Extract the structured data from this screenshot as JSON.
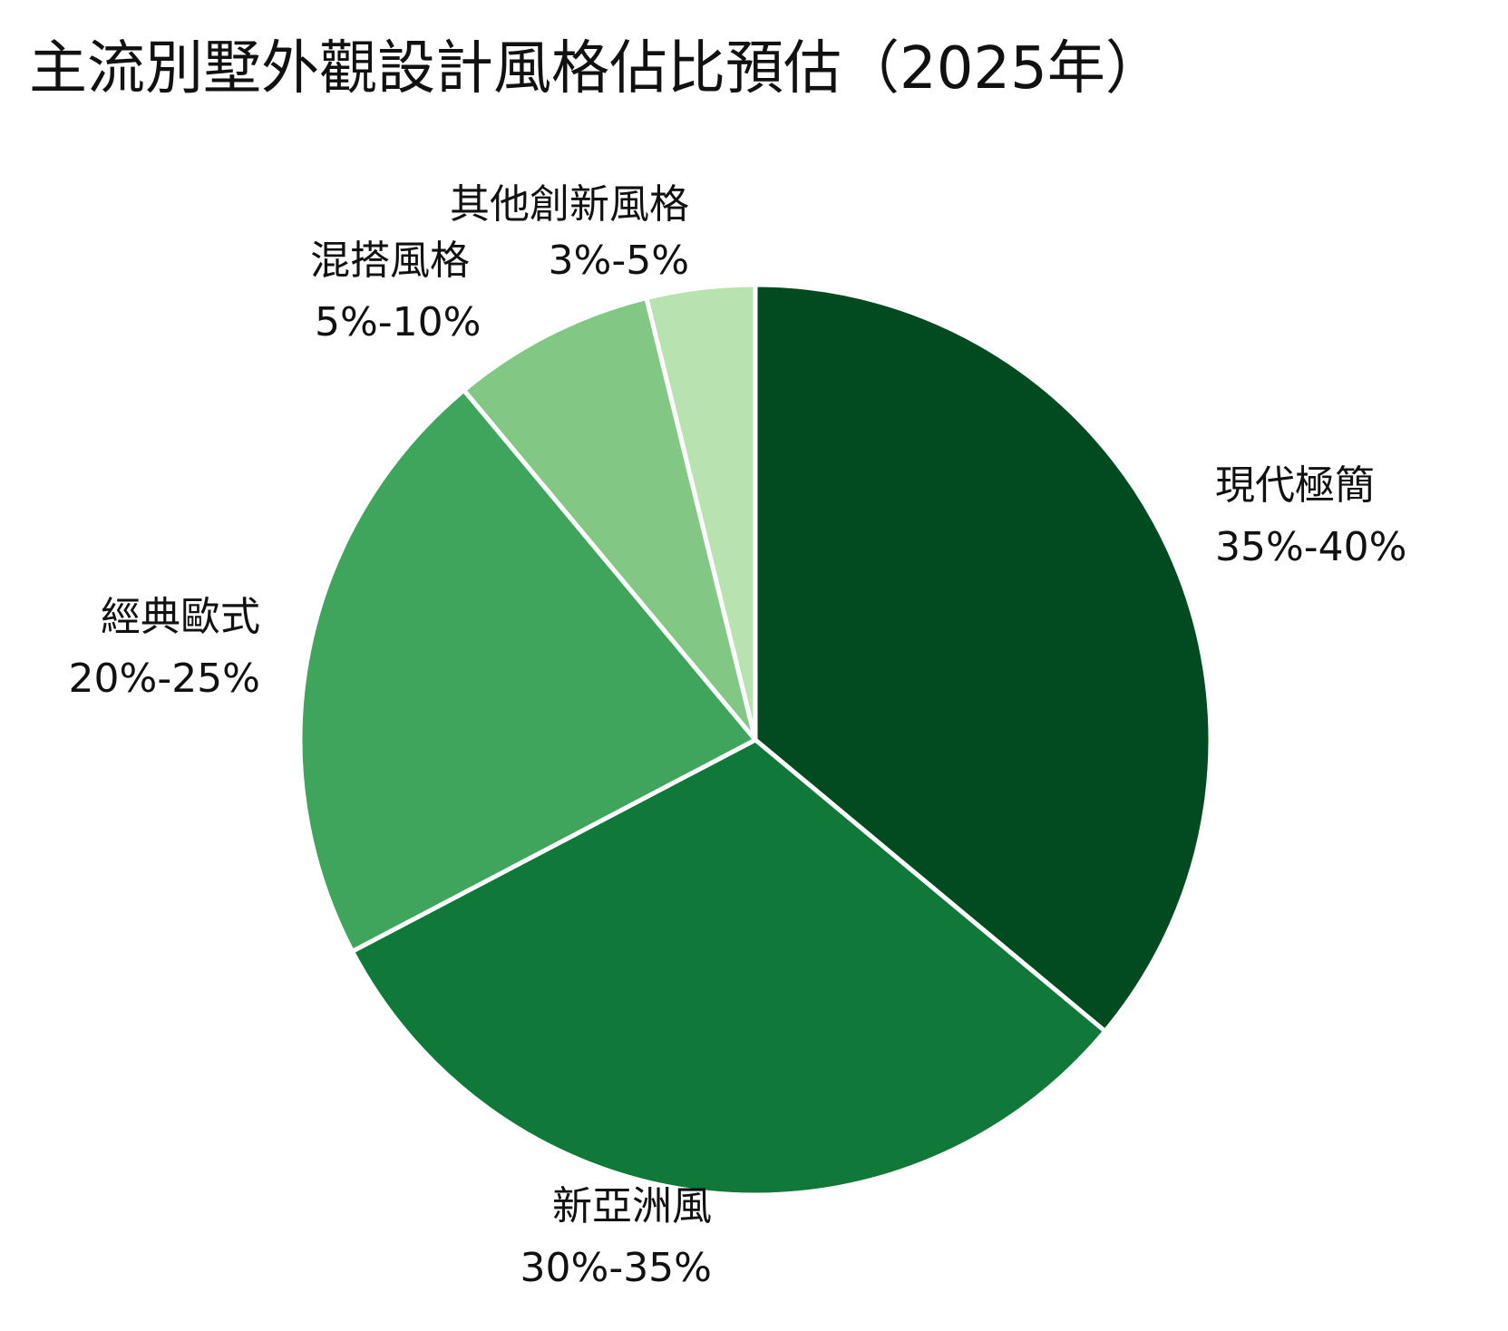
{
  "chart_data": {
    "type": "pie",
    "title": "主流別墅外觀設計風格佔比預估（2025年）",
    "start_angle": "12 o'clock",
    "direction": "clockwise",
    "slices": [
      {
        "category": "現代極簡",
        "range_label": "35%-40%",
        "value": 37.5,
        "color": "#024a1f"
      },
      {
        "category": "新亞洲風",
        "range_label": "30%-35%",
        "value": 32.5,
        "color": "#107838"
      },
      {
        "category": "經典歐式",
        "range_label": "20%-25%",
        "value": 22.5,
        "color": "#3fa45c"
      },
      {
        "category": "混搭風格",
        "range_label": "5%-10%",
        "value": 7.5,
        "color": "#82c784"
      },
      {
        "category": "其他創新風格",
        "range_label": "3%-5%",
        "value": 4,
        "color": "#b8e2b0"
      }
    ]
  }
}
